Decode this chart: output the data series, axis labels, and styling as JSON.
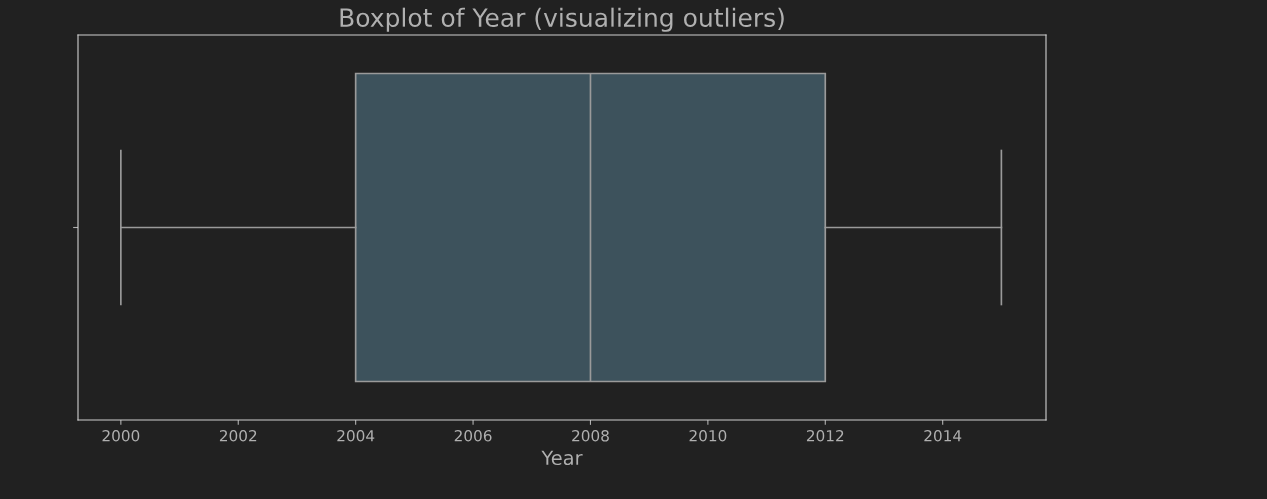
{
  "chart_data": {
    "type": "box",
    "orientation": "horizontal",
    "title": "Boxplot of Year (visualizing outliers)",
    "xlabel": "Year",
    "categories": [
      null
    ],
    "boxes": [
      {
        "low": 2000,
        "q1": 2004,
        "median": 2008,
        "q3": 2012,
        "high": 2015
      }
    ],
    "color": "#3d525c",
    "xlim": [
      1999.27,
      2015.76
    ],
    "xticks": [
      2000,
      2002,
      2004,
      2006,
      2008,
      2010,
      2012,
      2014
    ],
    "grid": false
  }
}
